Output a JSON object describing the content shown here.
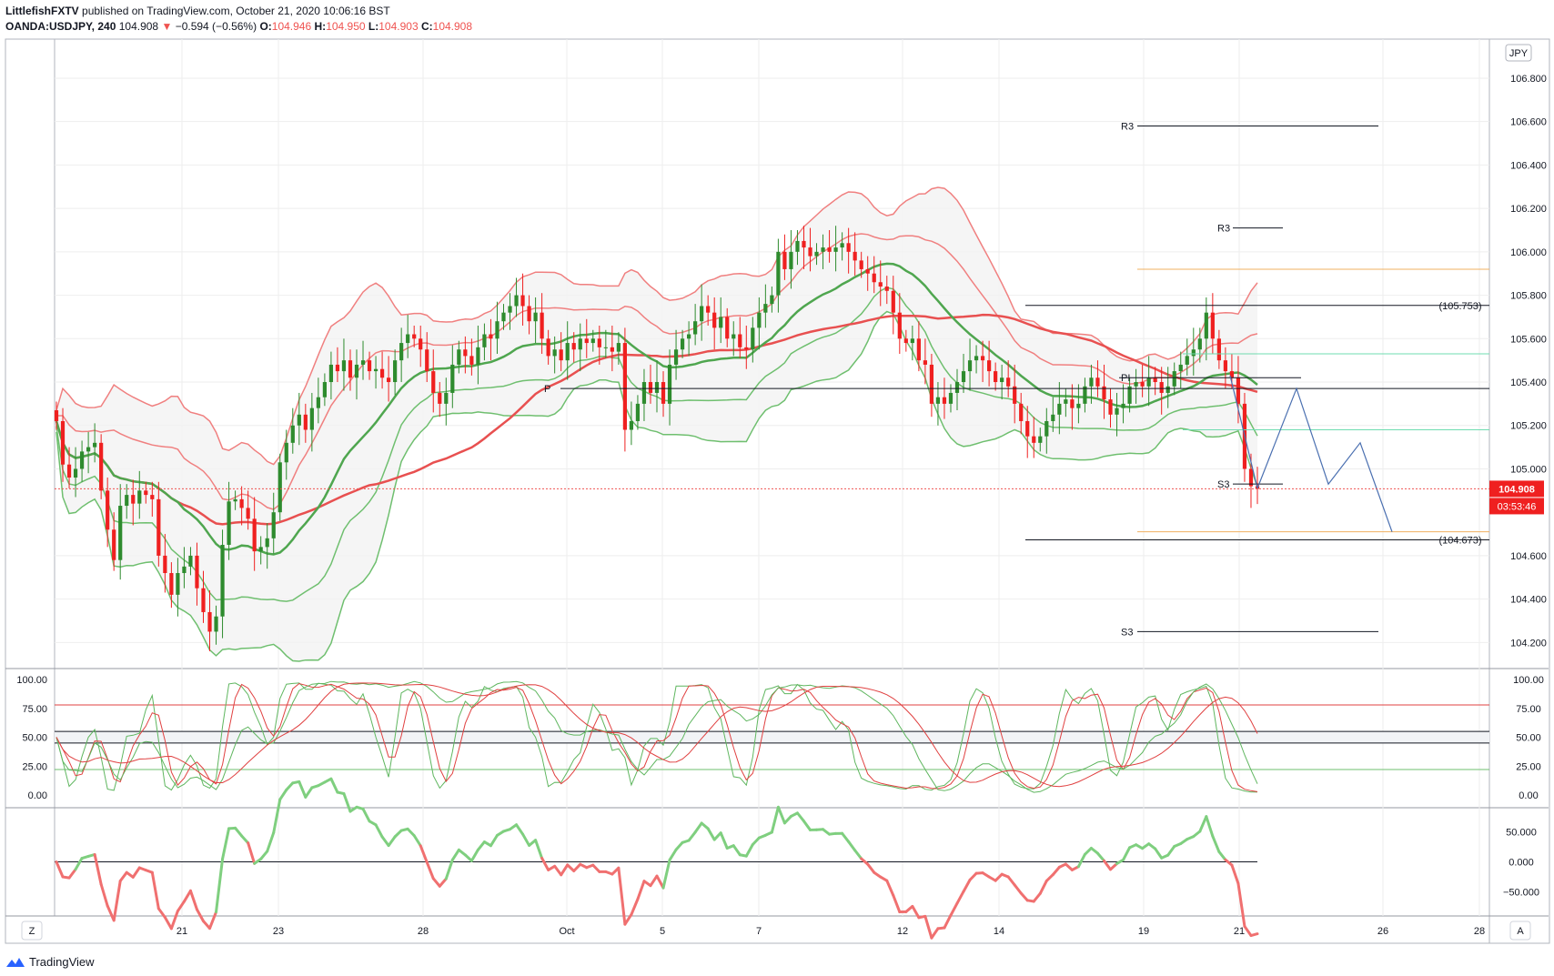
{
  "header": {
    "author": "LittlefishFXTV",
    "published": "published on TradingView.com, October 21, 2020 10:06:16 BST",
    "symbol": "OANDA:USDJPY, 240",
    "last": "104.908",
    "change_arrow": "▼",
    "change": "−0.594 (−0.56%)",
    "o_label": "O:",
    "o_value": "104.946",
    "h_label": "H:",
    "h_value": "104.950",
    "l_label": "L:",
    "l_value": "104.903",
    "c_label": "C:",
    "c_value": "104.908"
  },
  "footer": {
    "brand": "TradingView",
    "icon": "tradingview-logo-icon"
  },
  "colors": {
    "up": "#2e8b2e",
    "down": "#ef2020",
    "upper_band": "#f08080",
    "lower_band": "#6fbf6f",
    "grid": "#eeeeee",
    "projection": "#4a6fb0",
    "orange": "#f0b060",
    "teal": "#6fdcb0"
  },
  "chart_data": {
    "type": "candlestick",
    "currency_badge": "JPY",
    "x_tick_labels": [
      "21",
      "23",
      "28",
      "Oct",
      "5",
      "7",
      "12",
      "14",
      "19",
      "21",
      "26",
      "28"
    ],
    "price_axis": {
      "ylim": [
        104.08,
        106.98
      ],
      "ticks": [
        "106.800",
        "106.600",
        "106.400",
        "106.200",
        "106.000",
        "105.800",
        "105.600",
        "105.400",
        "105.200",
        "105.000",
        "104.600",
        "104.400",
        "104.200"
      ]
    },
    "last_price_label": "104.908",
    "countdown_label": "03:53:46",
    "pivot_labels": [
      {
        "text": "R3",
        "price": 106.58
      },
      {
        "text": "R3",
        "price": 106.11
      },
      {
        "text": "P",
        "price": 105.37
      },
      {
        "text": "PI",
        "price": 105.42
      },
      {
        "text": "S3",
        "price": 104.93
      },
      {
        "text": "S3",
        "price": 104.25
      }
    ],
    "level_labels": [
      {
        "text": "(105.753)",
        "price": 105.753
      },
      {
        "text": "(104.673)",
        "price": 104.673
      }
    ],
    "horizontal_lines": [
      {
        "price": 106.58,
        "color": "black"
      },
      {
        "price": 106.11,
        "color": "black"
      },
      {
        "price": 105.92,
        "color": "orange"
      },
      {
        "price": 105.753,
        "color": "black"
      },
      {
        "price": 105.53,
        "color": "teal"
      },
      {
        "price": 105.42,
        "color": "black"
      },
      {
        "price": 105.37,
        "color": "black"
      },
      {
        "price": 105.18,
        "color": "teal"
      },
      {
        "price": 104.93,
        "color": "black"
      },
      {
        "price": 104.71,
        "color": "orange"
      },
      {
        "price": 104.673,
        "color": "black"
      },
      {
        "price": 104.25,
        "color": "black"
      }
    ],
    "close_prices": [
      105.22,
      105.02,
      104.96,
      105.0,
      105.08,
      105.1,
      105.12,
      104.9,
      104.72,
      104.58,
      104.83,
      104.88,
      104.84,
      104.9,
      104.88,
      104.86,
      104.6,
      104.52,
      104.42,
      104.52,
      104.55,
      104.6,
      104.45,
      104.34,
      104.25,
      104.32,
      104.65,
      104.85,
      104.86,
      104.82,
      104.77,
      104.62,
      104.64,
      104.68,
      104.8,
      105.03,
      105.12,
      105.2,
      105.25,
      105.18,
      105.28,
      105.33,
      105.4,
      105.48,
      105.45,
      105.5,
      105.42,
      105.48,
      105.5,
      105.45,
      105.46,
      105.42,
      105.4,
      105.5,
      105.58,
      105.62,
      105.6,
      105.55,
      105.45,
      105.35,
      105.3,
      105.35,
      105.48,
      105.55,
      105.52,
      105.48,
      105.56,
      105.62,
      105.6,
      105.68,
      105.72,
      105.75,
      105.8,
      105.75,
      105.68,
      105.72,
      105.6,
      105.52,
      105.55,
      105.5,
      105.58,
      105.55,
      105.6,
      105.58,
      105.6,
      105.56,
      105.56,
      105.54,
      105.58,
      105.18,
      105.22,
      105.3,
      105.4,
      105.35,
      105.4,
      105.3,
      105.48,
      105.55,
      105.6,
      105.62,
      105.68,
      105.75,
      105.72,
      105.65,
      105.7,
      105.6,
      105.62,
      105.56,
      105.55,
      105.65,
      105.72,
      105.76,
      105.8,
      106.0,
      105.92,
      106.0,
      106.05,
      106.02,
      105.98,
      106.0,
      106.02,
      106.0,
      106.02,
      106.04,
      106.0,
      105.96,
      105.92,
      105.9,
      105.86,
      105.84,
      105.82,
      105.72,
      105.6,
      105.58,
      105.6,
      105.5,
      105.48,
      105.3,
      105.33,
      105.3,
      105.35,
      105.4,
      105.45,
      105.5,
      105.52,
      105.5,
      105.45,
      105.4,
      105.42,
      105.38,
      105.3,
      105.22,
      105.15,
      105.12,
      105.15,
      105.22,
      105.25,
      105.3,
      105.32,
      105.28,
      105.3,
      105.38,
      105.42,
      105.38,
      105.32,
      105.25,
      105.28,
      105.3,
      105.38,
      105.4,
      105.38,
      105.42,
      105.4,
      105.35,
      105.38,
      105.45,
      105.48,
      105.52,
      105.55,
      105.6,
      105.72,
      105.6,
      105.5,
      105.45,
      105.42,
      105.3,
      105.0,
      104.92,
      104.908
    ],
    "indicators": {
      "stochastic": {
        "yticks_left": [
          "100.00",
          "75.00",
          "50.00",
          "25.00",
          "0.00"
        ],
        "yticks_right": [
          "100.00",
          "75.00",
          "50.00",
          "25.00",
          "0.00"
        ],
        "ylim": [
          0,
          100
        ]
      },
      "momentum": {
        "yticks": [
          "50.000",
          "0.000",
          "−50.000"
        ],
        "ylim": [
          -75,
          75
        ]
      }
    },
    "scale_buttons": {
      "left": "Z",
      "right": "A"
    }
  }
}
